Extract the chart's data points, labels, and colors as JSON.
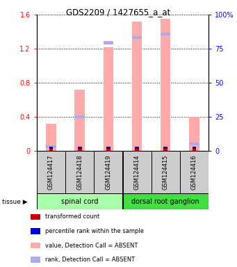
{
  "title": "GDS2209 / 1427655_a_at",
  "samples": [
    "GSM124417",
    "GSM124418",
    "GSM124419",
    "GSM124414",
    "GSM124415",
    "GSM124416"
  ],
  "tissue_groups": [
    {
      "label": "spinal cord",
      "samples": [
        0,
        1,
        2
      ],
      "color": "#aaffaa"
    },
    {
      "label": "dorsal root ganglion",
      "samples": [
        3,
        4,
        5
      ],
      "color": "#44dd44"
    }
  ],
  "pink_bar_values": [
    0.32,
    0.72,
    1.22,
    1.52,
    1.55,
    0.4
  ],
  "blue_marker_values_left": [
    0.05,
    0.4,
    1.27,
    1.33,
    1.37,
    0.08
  ],
  "pink_bar_color": "#ffaaaa",
  "blue_marker_color": "#aaaaee",
  "red_dot_color": "#cc0000",
  "blue_dot_color": "#0000cc",
  "ylim_left": [
    0,
    1.6
  ],
  "ylim_right": [
    0,
    100
  ],
  "yticks_left": [
    0,
    0.4,
    0.8,
    1.2,
    1.6
  ],
  "yticks_right": [
    0,
    25,
    50,
    75,
    100
  ],
  "ytick_labels_left": [
    "0",
    "0.4",
    "0.8",
    "1.2",
    "1.6"
  ],
  "ytick_labels_right": [
    "0",
    "25",
    "50",
    "75",
    "100%"
  ],
  "legend_items": [
    {
      "color": "#cc0000",
      "label": "transformed count"
    },
    {
      "color": "#0000cc",
      "label": "percentile rank within the sample"
    },
    {
      "color": "#ffaaaa",
      "label": "value, Detection Call = ABSENT"
    },
    {
      "color": "#aaaaee",
      "label": "rank, Detection Call = ABSENT"
    }
  ],
  "tissue_label": "tissue",
  "background_color": "#ffffff",
  "sample_box_color": "#cccccc",
  "bar_width": 0.35
}
